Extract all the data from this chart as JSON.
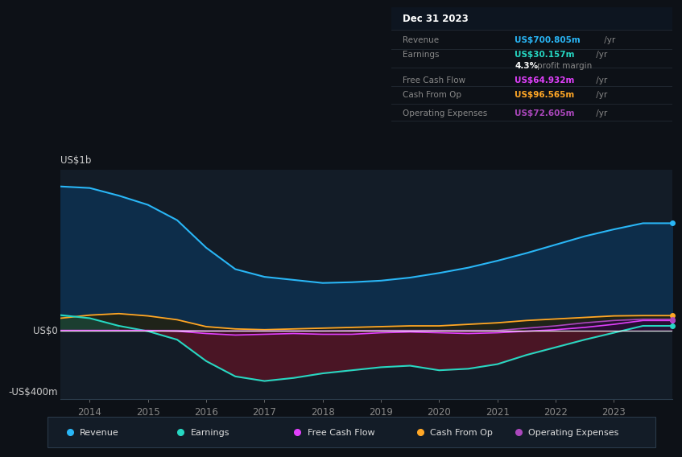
{
  "bg_color": "#0d1117",
  "plot_bg_color": "#131c27",
  "grid_color": "#1e2d3d",
  "title": "Dec 31 2023",
  "ylabel_top": "US$1b",
  "ylabel_zero": "US$0",
  "ylabel_bot": "-US$400m",
  "ylim": [
    -450,
    1050
  ],
  "years": [
    2013.5,
    2014.0,
    2014.5,
    2015.0,
    2015.5,
    2016.0,
    2016.5,
    2017.0,
    2017.5,
    2018.0,
    2018.5,
    2019.0,
    2019.5,
    2020.0,
    2020.5,
    2021.0,
    2021.5,
    2022.0,
    2022.5,
    2023.0,
    2023.5,
    2024.0
  ],
  "revenue": [
    940,
    930,
    880,
    820,
    720,
    540,
    400,
    350,
    330,
    310,
    315,
    325,
    345,
    375,
    410,
    455,
    505,
    560,
    615,
    660,
    700,
    700
  ],
  "earnings": [
    100,
    80,
    30,
    -5,
    -60,
    -200,
    -300,
    -330,
    -310,
    -280,
    -260,
    -240,
    -230,
    -260,
    -250,
    -220,
    -160,
    -110,
    -60,
    -15,
    30,
    30
  ],
  "free_cash_flow": [
    0,
    0,
    0,
    0,
    -5,
    -20,
    -30,
    -25,
    -20,
    -25,
    -25,
    -15,
    -10,
    -15,
    -20,
    -15,
    -5,
    5,
    20,
    40,
    65,
    65
  ],
  "cash_from_op": [
    80,
    100,
    110,
    95,
    70,
    25,
    10,
    5,
    10,
    15,
    20,
    25,
    30,
    30,
    40,
    50,
    65,
    75,
    85,
    95,
    97,
    97
  ],
  "operating_expenses": [
    0,
    0,
    0,
    0,
    0,
    -3,
    -3,
    -3,
    -3,
    -3,
    -1,
    0,
    0,
    0,
    0,
    0,
    15,
    30,
    50,
    65,
    73,
    73
  ],
  "revenue_color": "#29b6f6",
  "revenue_fill": "#0d2d4a",
  "earnings_color": "#26d7c2",
  "earnings_fill_neg": "#4a1525",
  "earnings_fill_pos": "#1a4a3a",
  "fcf_color": "#e040fb",
  "fcf_fill_neg": "#3a0a2a",
  "fcf_fill_pos": "#2a0a3a",
  "cop_color": "#ffa726",
  "cop_fill_pos": "#3a2800",
  "opex_color": "#ab47bc",
  "opex_fill_pos": "#25104a",
  "legend_items": [
    {
      "label": "Revenue",
      "color": "#29b6f6"
    },
    {
      "label": "Earnings",
      "color": "#26d7c2"
    },
    {
      "label": "Free Cash Flow",
      "color": "#e040fb"
    },
    {
      "label": "Cash From Op",
      "color": "#ffa726"
    },
    {
      "label": "Operating Expenses",
      "color": "#ab47bc"
    }
  ],
  "table_rows": [
    {
      "label": "Revenue",
      "value": "US$700.805m",
      "color": "#29b6f6"
    },
    {
      "label": "Earnings",
      "value": "US$30.157m",
      "color": "#26d7c2"
    },
    {
      "label": "",
      "value": "4.3% profit margin",
      "color": "#aaaaaa"
    },
    {
      "label": "Free Cash Flow",
      "value": "US$64.932m",
      "color": "#e040fb"
    },
    {
      "label": "Cash From Op",
      "value": "US$96.565m",
      "color": "#ffa726"
    },
    {
      "label": "Operating Expenses",
      "value": "US$72.605m",
      "color": "#ab47bc"
    }
  ]
}
